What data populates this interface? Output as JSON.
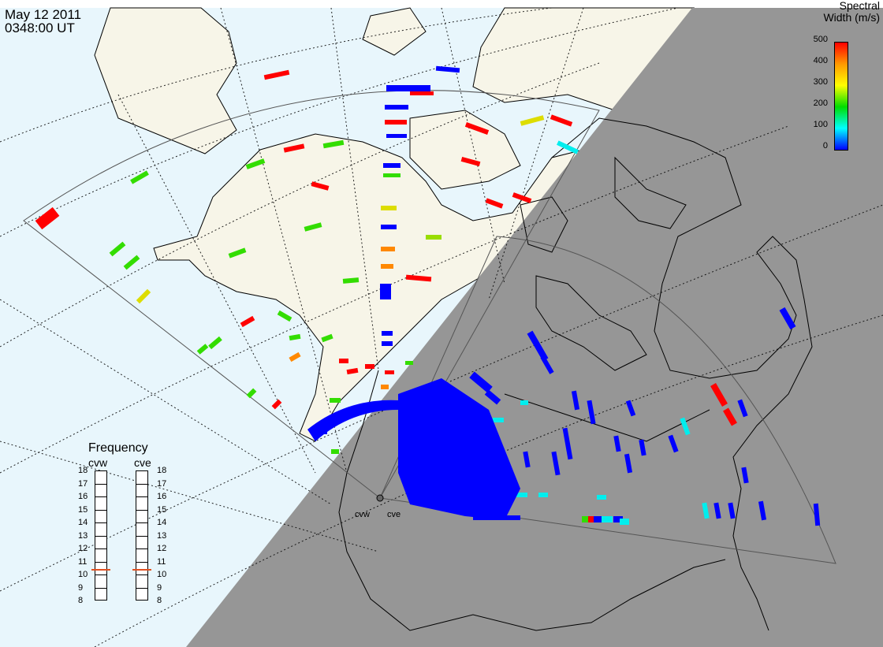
{
  "header": {
    "date": "May  12 2011",
    "time": "0348:00 UT"
  },
  "colorbar": {
    "title_line1": "Spectral",
    "title_line2": "Width (m/s)",
    "ticks": [
      "500",
      "400",
      "300",
      "200",
      "100",
      "0"
    ],
    "stops": [
      "#ff0000",
      "#ff9900",
      "#ffff00",
      "#00dd00",
      "#00ffff",
      "#0000ff"
    ]
  },
  "frequency_panel": {
    "title": "Frequency",
    "radar_left": "cvw",
    "radar_right": "cve",
    "ticks": [
      "18",
      "17",
      "16",
      "15",
      "14",
      "13",
      "12",
      "11",
      "10",
      "9",
      "8"
    ],
    "marker_color": "#e05020"
  },
  "radars": {
    "west_label": "cvw",
    "east_label": "cve"
  },
  "colors": {
    "ocean": "#e8f6fc",
    "land": "#f7f5e8",
    "night": "#969696",
    "coast": "#000000"
  }
}
